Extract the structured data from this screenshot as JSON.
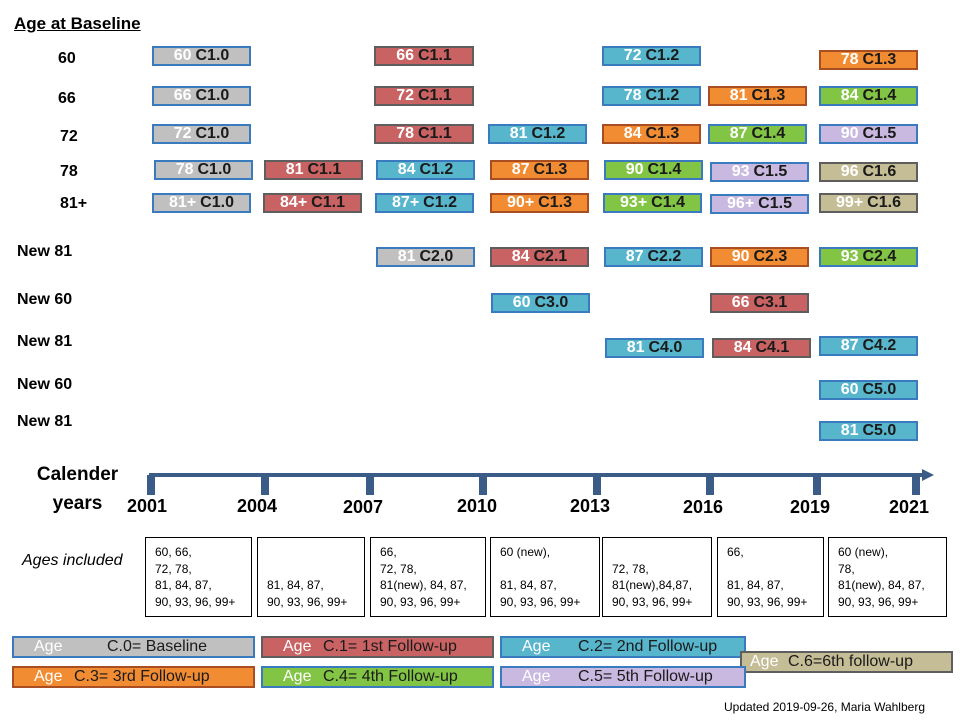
{
  "title": "Age at Baseline",
  "colors": {
    "C0": {
      "fill": "#c0c0c0",
      "border": "#3a7abf"
    },
    "C1": {
      "fill": "#c96263",
      "border": "#5e5e5e"
    },
    "C2": {
      "fill": "#57b5cc",
      "border": "#3a7abf"
    },
    "C3": {
      "fill": "#f28c33",
      "border": "#a94e22"
    },
    "C4": {
      "fill": "#82c444",
      "border": "#3a7abf"
    },
    "C5": {
      "fill": "#c9b9e0",
      "border": "#3a7abf"
    },
    "C6": {
      "fill": "#c4bd95",
      "border": "#5e5e5e"
    },
    "axis": "#3a5c86"
  },
  "row_labels": [
    "60",
    "66",
    "72",
    "78",
    "81+",
    "New 81",
    "New 60",
    "New 81",
    "New 60",
    "New 81"
  ],
  "boxes": [
    {
      "age": "60",
      "code": "C1.0",
      "cat": "C0"
    },
    {
      "age": "66",
      "code": "C1.1",
      "cat": "C1"
    },
    {
      "age": "72",
      "code": "C1.2",
      "cat": "C2"
    },
    {
      "age": "78",
      "code": "C1.3",
      "cat": "C3"
    },
    {
      "age": "66",
      "code": "C1.0",
      "cat": "C0"
    },
    {
      "age": "72",
      "code": "C1.1",
      "cat": "C1"
    },
    {
      "age": "78",
      "code": "C1.2",
      "cat": "C2"
    },
    {
      "age": "81",
      "code": "C1.3",
      "cat": "C3"
    },
    {
      "age": "84",
      "code": "C1.4",
      "cat": "C4"
    },
    {
      "age": "72",
      "code": "C1.0",
      "cat": "C0"
    },
    {
      "age": "78",
      "code": "C1.1",
      "cat": "C1"
    },
    {
      "age": "81",
      "code": "C1.2",
      "cat": "C2"
    },
    {
      "age": "84",
      "code": "C1.3",
      "cat": "C3"
    },
    {
      "age": "87",
      "code": "C1.4",
      "cat": "C4"
    },
    {
      "age": "90",
      "code": "C1.5",
      "cat": "C5"
    },
    {
      "age": "78",
      "code": "C1.0",
      "cat": "C0"
    },
    {
      "age": "81",
      "code": "C1.1",
      "cat": "C1"
    },
    {
      "age": "84",
      "code": "C1.2",
      "cat": "C2"
    },
    {
      "age": "87",
      "code": "C1.3",
      "cat": "C3"
    },
    {
      "age": "90",
      "code": "C1.4",
      "cat": "C4"
    },
    {
      "age": "93",
      "code": "C1.5",
      "cat": "C5"
    },
    {
      "age": "96",
      "code": "C1.6",
      "cat": "C6"
    },
    {
      "age": "81+",
      "code": "C1.0",
      "cat": "C0"
    },
    {
      "age": "84+",
      "code": "C1.1",
      "cat": "C1"
    },
    {
      "age": "87+",
      "code": "C1.2",
      "cat": "C2"
    },
    {
      "age": "90+",
      "code": "C1.3",
      "cat": "C3"
    },
    {
      "age": "93+",
      "code": "C1.4",
      "cat": "C4"
    },
    {
      "age": "96+",
      "code": "C1.5",
      "cat": "C5"
    },
    {
      "age": "99+",
      "code": "C1.6",
      "cat": "C6"
    },
    {
      "age": "81",
      "code": "C2.0",
      "cat": "C0"
    },
    {
      "age": "84",
      "code": "C2.1",
      "cat": "C1"
    },
    {
      "age": "87",
      "code": "C2.2",
      "cat": "C2"
    },
    {
      "age": "90",
      "code": "C2.3",
      "cat": "C3"
    },
    {
      "age": "93",
      "code": "C2.4",
      "cat": "C4"
    },
    {
      "age": "60",
      "code": "C3.0",
      "cat": "C2"
    },
    {
      "age": "66",
      "code": "C3.1",
      "cat": "C1"
    },
    {
      "age": "81",
      "code": "C4.0",
      "cat": "C2"
    },
    {
      "age": "84",
      "code": "C4.1",
      "cat": "C1"
    },
    {
      "age": "87",
      "code": "C4.2",
      "cat": "C2"
    },
    {
      "age": "60",
      "code": "C5.0",
      "cat": "C2"
    },
    {
      "age": "81",
      "code": "C5.0",
      "cat": "C2"
    }
  ],
  "calendar_label": "Calender\nyears",
  "years": [
    "2001",
    "2004",
    "2007",
    "2010",
    "2013",
    "2016",
    "2019",
    "2021"
  ],
  "ages_included_label": "Ages included",
  "ages_included": [
    "60, 66,\n72, 78,\n81, 84, 87,\n90, 93, 96, 99+",
    "\n\n81, 84, 87,\n90, 93, 96, 99+",
    "66,\n72, 78,\n81(new), 84, 87,\n90, 93, 96, 99+",
    "60 (new),\n\n81, 84, 87,\n90, 93, 96, 99+",
    "\n72, 78,\n81(new),84,87,\n90, 93, 96, 99+",
    "66,\n\n81, 84, 87,\n90, 93, 96, 99+",
    "60 (new),\n78,\n81(new), 84, 87,\n90, 93, 96, 99+"
  ],
  "legend": [
    {
      "age": "Age",
      "text": "C.0= Baseline",
      "cat": "C0"
    },
    {
      "age": "Age",
      "text": "C.1= 1st Follow-up",
      "cat": "C1"
    },
    {
      "age": "Age",
      "text": "C.2= 2nd Follow-up",
      "cat": "C2"
    },
    {
      "age": "Age",
      "text": "C.6=6th follow-up",
      "cat": "C6"
    },
    {
      "age": "Age",
      "text": "C.3= 3rd Follow-up",
      "cat": "C3"
    },
    {
      "age": "Age",
      "text": "C.4= 4th Follow-up",
      "cat": "C4"
    },
    {
      "age": "Age",
      "text": "C.5= 5th Follow-up",
      "cat": "C5"
    }
  ],
  "updated": "Updated 2019-09-26,  Maria Wahlberg"
}
